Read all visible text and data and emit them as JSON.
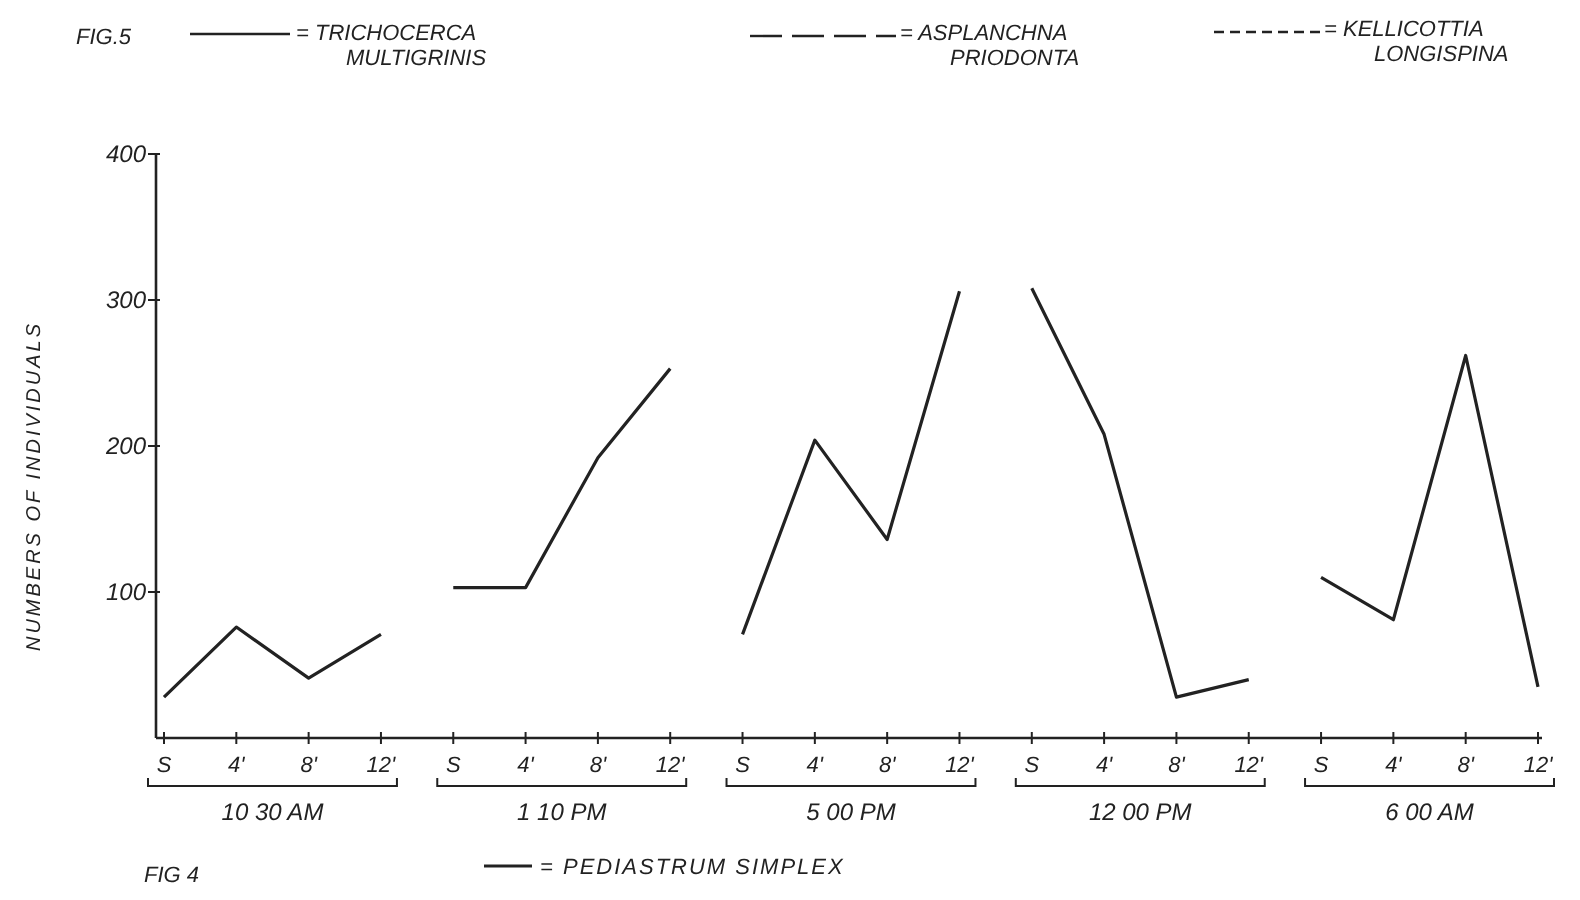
{
  "chart_data": {
    "type": "line",
    "ylabel": "NUMBERS OF INDIVIDUALS",
    "categories": [
      "S",
      "4'",
      "8'",
      "12'",
      "S",
      "4'",
      "8'",
      "12'",
      "S",
      "4'",
      "8'",
      "12'",
      "S",
      "4'",
      "8'",
      "12'",
      "S",
      "4'",
      "8'",
      "12'"
    ],
    "series": [
      {
        "name": "= PEDIASTRUM SIMPLEX",
        "color": "#222222",
        "values": [
          28,
          76,
          41,
          71,
          null,
          null,
          null,
          null,
          null,
          null,
          null,
          null,
          null,
          null,
          null,
          null,
          null,
          null,
          null,
          null
        ]
      },
      {
        "color": "#222222",
        "values": [
          null,
          null,
          null,
          null,
          103,
          103,
          192,
          253,
          null,
          null,
          null,
          null,
          null,
          null,
          null,
          null,
          null,
          null,
          null,
          null
        ]
      },
      {
        "color": "#222222",
        "values": [
          null,
          null,
          null,
          null,
          null,
          null,
          null,
          null,
          71,
          204,
          136,
          306,
          null,
          null,
          null,
          null,
          null,
          null,
          null,
          null
        ]
      },
      {
        "color": "#222222",
        "values": [
          null,
          null,
          null,
          null,
          null,
          null,
          null,
          null,
          null,
          null,
          null,
          null,
          308,
          208,
          28,
          40,
          null,
          null,
          null,
          null
        ]
      },
      {
        "color": "#222222",
        "values": [
          null,
          null,
          null,
          null,
          null,
          null,
          null,
          null,
          null,
          null,
          null,
          null,
          null,
          null,
          null,
          null,
          110,
          81,
          262,
          35
        ]
      }
    ],
    "ylim": [
      0,
      400
    ],
    "yticks": [
      100,
      200,
      300,
      400
    ],
    "legend": "bottom",
    "marker": "none",
    "line_style": "solid",
    "annotations": [
      "FIG.5",
      "= TRICHOCERCA\nMULTIGRINIS",
      "= ASPLANCHNA\nPRIODONTA",
      "= KELLICOTTIA\nLONGISPINA",
      "FIG 4",
      "10 30 AM",
      "1 10 PM",
      "5 00 PM",
      "12 00 PM",
      "6 00 AM"
    ]
  }
}
